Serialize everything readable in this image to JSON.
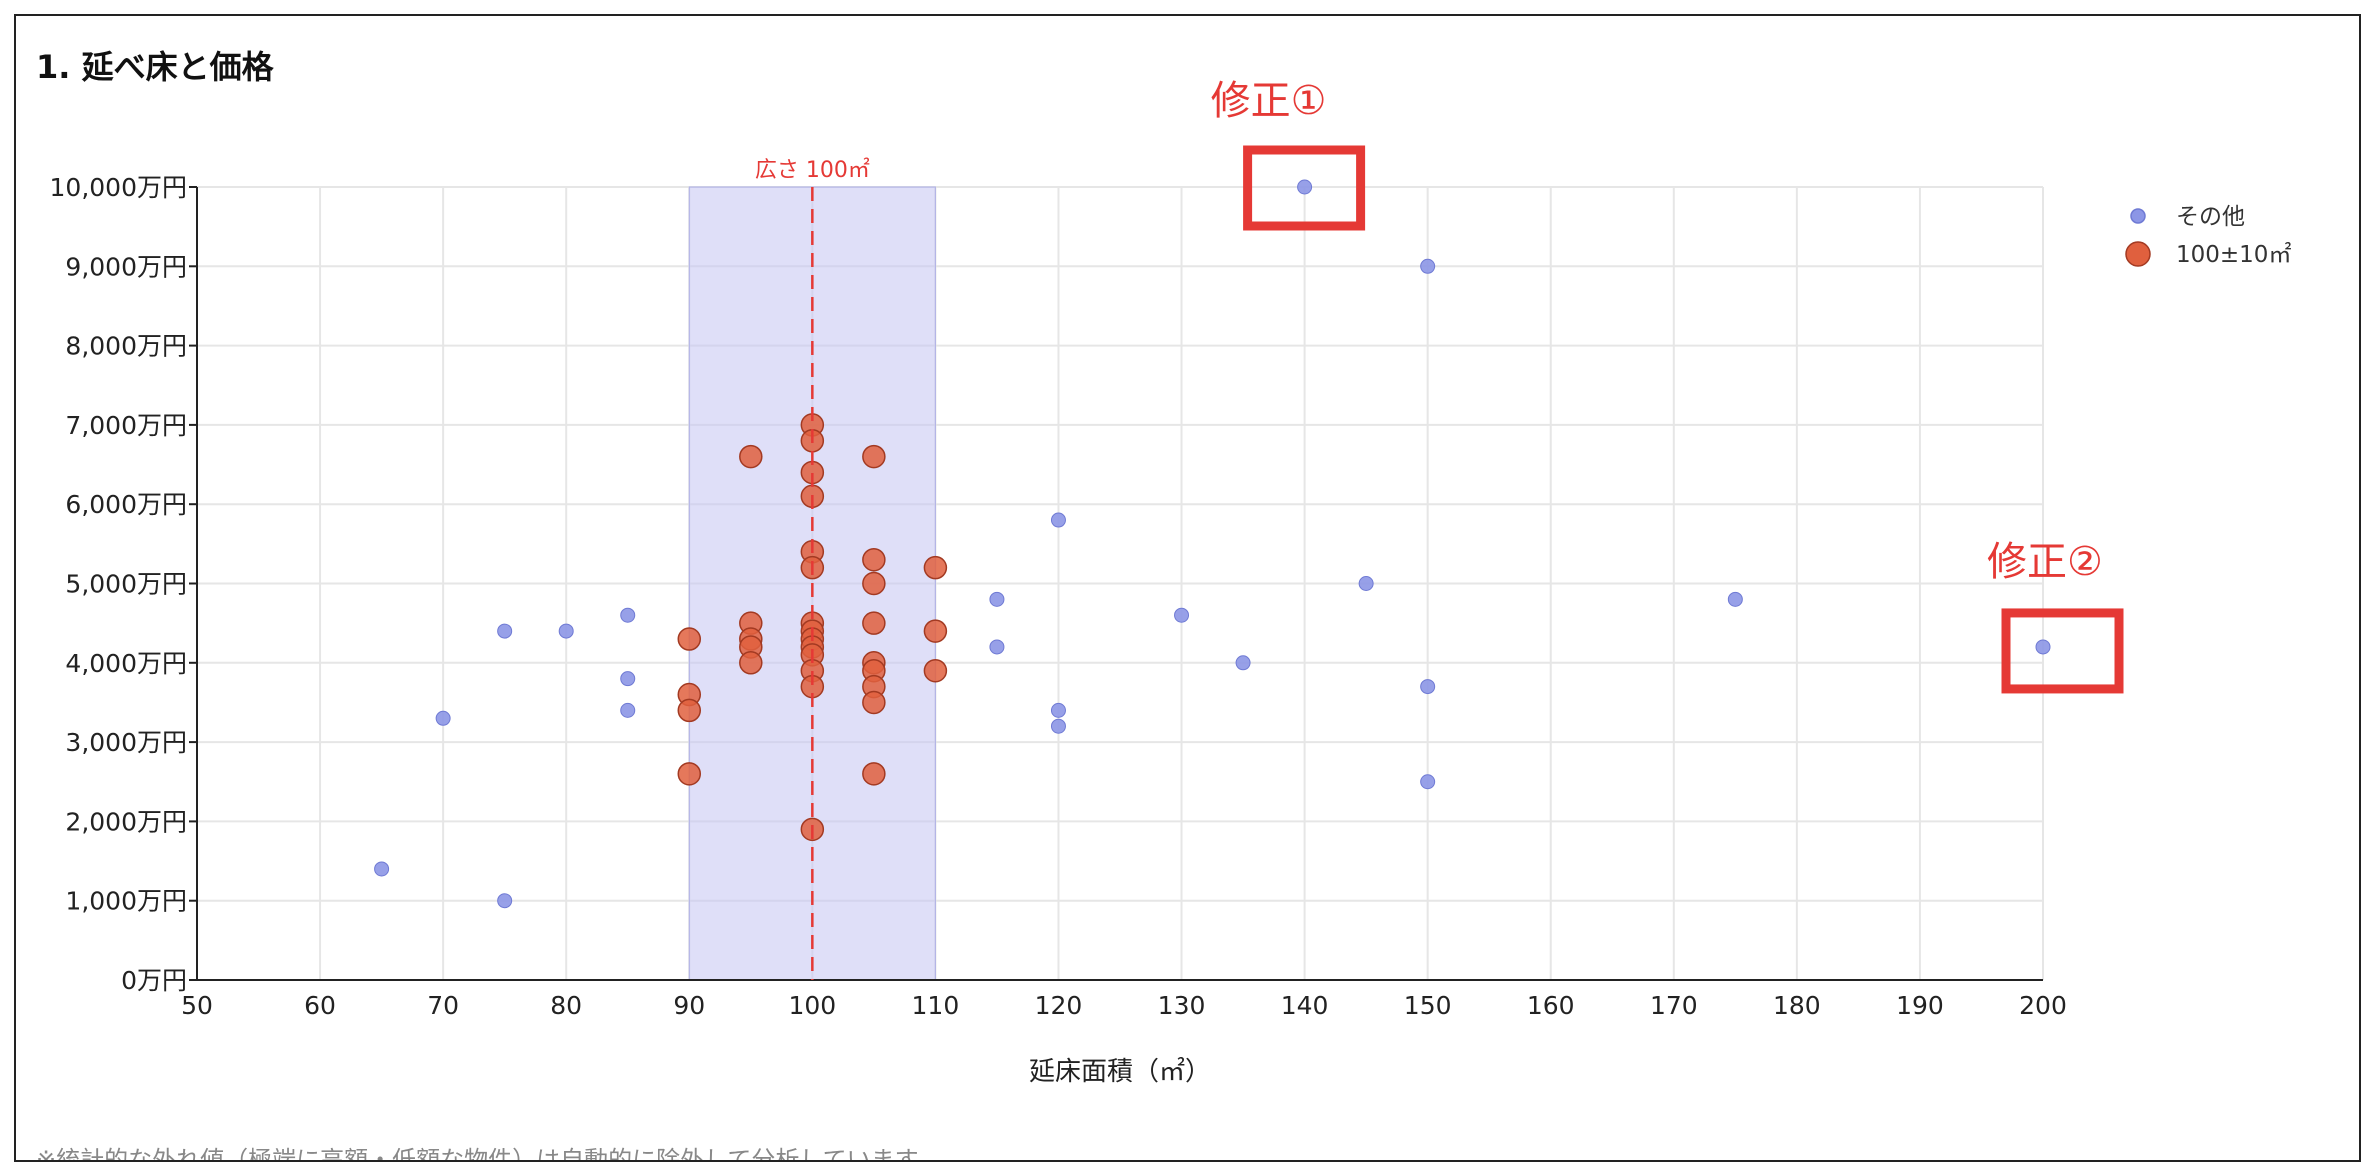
{
  "panel": {
    "title": "1. 延べ床と価格",
    "footnote": "※統計的な外れ値（極端に高額・低額な物件）は自動的に除外して分析しています"
  },
  "chart_data": {
    "type": "scatter",
    "title": "1. 延べ床と価格",
    "xlabel": "延床面積（㎡）",
    "ylabel": "",
    "xlim": [
      50,
      200
    ],
    "ylim": [
      0,
      10000
    ],
    "x_ticks": [
      50,
      60,
      70,
      80,
      90,
      100,
      110,
      120,
      130,
      140,
      150,
      160,
      170,
      180,
      190,
      200
    ],
    "x_tick_labels": [
      "50",
      "60",
      "70",
      "80",
      "90",
      "100",
      "110",
      "120",
      "130",
      "140",
      "150",
      "160",
      "170",
      "180",
      "190",
      "200"
    ],
    "y_ticks": [
      0,
      1000,
      2000,
      3000,
      4000,
      5000,
      6000,
      7000,
      8000,
      9000,
      10000
    ],
    "y_tick_labels": [
      "0万円",
      "1,000万円",
      "2,000万円",
      "3,000万円",
      "4,000万円",
      "5,000万円",
      "6,000万円",
      "7,000万円",
      "8,000万円",
      "9,000万円",
      "10,000万円"
    ],
    "grid": true,
    "legend_position": "top-right",
    "highlight_band": {
      "x_from": 90,
      "x_to": 110,
      "color": "#c5c5f2"
    },
    "reference_line": {
      "x": 100,
      "label": "広さ 100㎡",
      "color": "#e53935"
    },
    "series": [
      {
        "name": "その他",
        "color": "#8c96e6",
        "points": [
          [
            140,
            10000
          ],
          [
            150,
            9000
          ],
          [
            120,
            5800
          ],
          [
            145,
            5000
          ],
          [
            115,
            4800
          ],
          [
            175,
            4800
          ],
          [
            85,
            4600
          ],
          [
            130,
            4600
          ],
          [
            75,
            4400
          ],
          [
            80,
            4400
          ],
          [
            115,
            4200
          ],
          [
            200,
            4200
          ],
          [
            135,
            4000
          ],
          [
            85,
            3800
          ],
          [
            150,
            3700
          ],
          [
            85,
            3400
          ],
          [
            120,
            3400
          ],
          [
            70,
            3300
          ],
          [
            120,
            3200
          ],
          [
            150,
            2500
          ],
          [
            65,
            1400
          ],
          [
            75,
            1000
          ]
        ]
      },
      {
        "name": "100±10㎡",
        "color": "#e0603e",
        "points": [
          [
            100,
            7000
          ],
          [
            100,
            6800
          ],
          [
            95,
            6600
          ],
          [
            105,
            6600
          ],
          [
            100,
            6400
          ],
          [
            100,
            6100
          ],
          [
            100,
            5400
          ],
          [
            105,
            5300
          ],
          [
            100,
            5200
          ],
          [
            110,
            5200
          ],
          [
            105,
            5000
          ],
          [
            95,
            4500
          ],
          [
            100,
            4500
          ],
          [
            105,
            4500
          ],
          [
            100,
            4400
          ],
          [
            110,
            4400
          ],
          [
            100,
            4300
          ],
          [
            90,
            4300
          ],
          [
            95,
            4300
          ],
          [
            95,
            4200
          ],
          [
            100,
            4200
          ],
          [
            100,
            4100
          ],
          [
            95,
            4000
          ],
          [
            105,
            4000
          ],
          [
            100,
            3900
          ],
          [
            105,
            3900
          ],
          [
            110,
            3900
          ],
          [
            100,
            3700
          ],
          [
            105,
            3700
          ],
          [
            90,
            3600
          ],
          [
            105,
            3500
          ],
          [
            90,
            3400
          ],
          [
            90,
            2600
          ],
          [
            105,
            2600
          ],
          [
            100,
            1900
          ]
        ]
      }
    ],
    "annotations": [
      {
        "label": "修正①",
        "target": [
          140,
          10000
        ]
      },
      {
        "label": "修正②",
        "target": [
          200,
          4200
        ]
      }
    ]
  }
}
